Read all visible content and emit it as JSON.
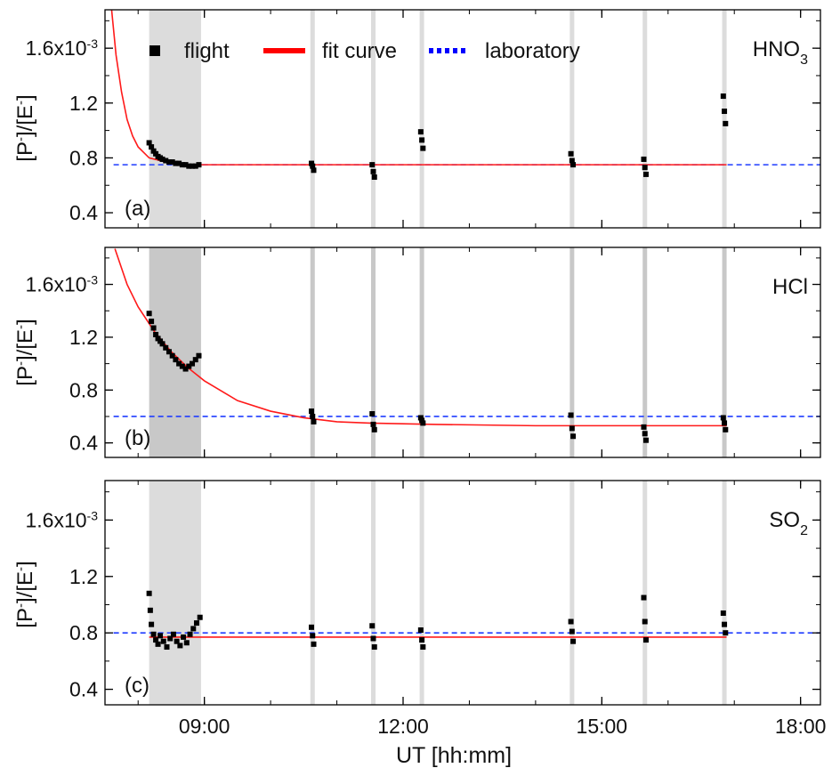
{
  "figure": {
    "x_axis_label": "UT [hh:mm]",
    "y_axis_label_main": "[P",
    "y_axis_label_sup1": "-",
    "y_axis_label_mid": "]/[E",
    "y_axis_label_sup2": "-",
    "y_axis_label_end": "]",
    "legend": [
      {
        "label": "flight",
        "color": "#000000",
        "style": "square"
      },
      {
        "label": "fit curve",
        "color": "#ff0000",
        "style": "solid"
      },
      {
        "label": "laboratory",
        "color": "#0000ff",
        "style": "dotted"
      }
    ]
  },
  "chart_data": [
    {
      "type": "line",
      "panel_label": "(a)",
      "species": "HNO3",
      "species_base": "HNO",
      "species_sub": "3",
      "xlabel": "UT [hh:mm]",
      "ylabel": "[P-]/[E-]",
      "xlim_hours": [
        7.5,
        18.3
      ],
      "ylim": [
        0.00029,
        0.00188
      ],
      "x_ticks": [
        "09:00",
        "12:00",
        "15:00",
        "18:00"
      ],
      "y_ticks": [
        {
          "value": 0.0004,
          "label": "0.4"
        },
        {
          "value": 0.0008,
          "label": "0.8"
        },
        {
          "value": 0.0012,
          "label": "1.2"
        },
        {
          "value": 0.0016,
          "label": "1.6x10",
          "sup": "-3"
        }
      ],
      "shade_color": "#dcdcdc",
      "flight_periods": [
        {
          "start": "08:10",
          "end": "08:57"
        },
        {
          "start": "10:36",
          "end": "10:40"
        },
        {
          "start": "11:31",
          "end": "11:35"
        },
        {
          "start": "12:15",
          "end": "12:19"
        },
        {
          "start": "14:31",
          "end": "14:35"
        },
        {
          "start": "15:37",
          "end": "15:41"
        },
        {
          "start": "16:49",
          "end": "16:53"
        }
      ],
      "flight_data": [
        {
          "x": "08:10",
          "y": 0.00091
        },
        {
          "x": "08:12",
          "y": 0.00088
        },
        {
          "x": "08:14",
          "y": 0.00085
        },
        {
          "x": "08:16",
          "y": 0.00083
        },
        {
          "x": "08:18",
          "y": 0.00081
        },
        {
          "x": "08:20",
          "y": 0.0008
        },
        {
          "x": "08:22",
          "y": 0.00079
        },
        {
          "x": "08:25",
          "y": 0.00078
        },
        {
          "x": "08:28",
          "y": 0.00077
        },
        {
          "x": "08:31",
          "y": 0.00077
        },
        {
          "x": "08:34",
          "y": 0.00076
        },
        {
          "x": "08:37",
          "y": 0.00076
        },
        {
          "x": "08:40",
          "y": 0.00075
        },
        {
          "x": "08:43",
          "y": 0.00075
        },
        {
          "x": "08:46",
          "y": 0.00074
        },
        {
          "x": "08:49",
          "y": 0.00074
        },
        {
          "x": "08:52",
          "y": 0.00074
        },
        {
          "x": "08:55",
          "y": 0.00075
        },
        {
          "x": "10:37",
          "y": 0.00076
        },
        {
          "x": "10:38",
          "y": 0.00074
        },
        {
          "x": "10:39",
          "y": 0.00071
        },
        {
          "x": "11:32",
          "y": 0.00075
        },
        {
          "x": "11:33",
          "y": 0.0007
        },
        {
          "x": "11:34",
          "y": 0.00066
        },
        {
          "x": "12:16",
          "y": 0.00099
        },
        {
          "x": "12:17",
          "y": 0.00093
        },
        {
          "x": "12:18",
          "y": 0.00087
        },
        {
          "x": "14:32",
          "y": 0.00083
        },
        {
          "x": "14:33",
          "y": 0.00078
        },
        {
          "x": "14:34",
          "y": 0.00075
        },
        {
          "x": "15:38",
          "y": 0.00079
        },
        {
          "x": "15:39",
          "y": 0.00073
        },
        {
          "x": "15:40",
          "y": 0.00068
        },
        {
          "x": "16:50",
          "y": 0.00125
        },
        {
          "x": "16:51",
          "y": 0.00114
        },
        {
          "x": "16:52",
          "y": 0.00105
        }
      ],
      "fit_curve": [
        {
          "x": "07:36",
          "y": 0.00188
        },
        {
          "x": "07:40",
          "y": 0.00155
        },
        {
          "x": "07:45",
          "y": 0.00128
        },
        {
          "x": "07:50",
          "y": 0.00108
        },
        {
          "x": "07:55",
          "y": 0.00096
        },
        {
          "x": "08:00",
          "y": 0.00088
        },
        {
          "x": "08:10",
          "y": 0.0008
        },
        {
          "x": "08:20",
          "y": 0.00078
        },
        {
          "x": "08:30",
          "y": 0.00076
        },
        {
          "x": "08:45",
          "y": 0.00075
        },
        {
          "x": "09:00",
          "y": 0.00075
        },
        {
          "x": "16:53",
          "y": 0.00075
        }
      ],
      "laboratory_value": 0.00075,
      "laboratory_x_range": [
        "08:10",
        "18:20"
      ]
    },
    {
      "type": "line",
      "panel_label": "(b)",
      "species": "HCl",
      "species_base": "HCl",
      "species_sub": "",
      "xlabel": "UT [hh:mm]",
      "ylabel": "[P-]/[E-]",
      "xlim_hours": [
        7.5,
        18.3
      ],
      "ylim": [
        0.00029,
        0.00188
      ],
      "x_ticks": [
        "09:00",
        "12:00",
        "15:00",
        "18:00"
      ],
      "y_ticks": [
        {
          "value": 0.0004,
          "label": "0.4"
        },
        {
          "value": 0.0008,
          "label": "0.8"
        },
        {
          "value": 0.0012,
          "label": "1.2"
        },
        {
          "value": 0.0016,
          "label": "1.6x10",
          "sup": "-3"
        }
      ],
      "shade_color": "#c8c8c8",
      "flight_periods": [
        {
          "start": "08:10",
          "end": "08:57"
        },
        {
          "start": "10:36",
          "end": "10:40"
        },
        {
          "start": "11:31",
          "end": "11:35"
        },
        {
          "start": "12:15",
          "end": "12:19"
        },
        {
          "start": "14:31",
          "end": "14:35"
        },
        {
          "start": "15:37",
          "end": "15:41"
        },
        {
          "start": "16:49",
          "end": "16:53"
        }
      ],
      "flight_data": [
        {
          "x": "08:10",
          "y": 0.00138
        },
        {
          "x": "08:12",
          "y": 0.00132
        },
        {
          "x": "08:14",
          "y": 0.00127
        },
        {
          "x": "08:16",
          "y": 0.00122
        },
        {
          "x": "08:18",
          "y": 0.00119
        },
        {
          "x": "08:20",
          "y": 0.00117
        },
        {
          "x": "08:22",
          "y": 0.00115
        },
        {
          "x": "08:25",
          "y": 0.00112
        },
        {
          "x": "08:28",
          "y": 0.00109
        },
        {
          "x": "08:31",
          "y": 0.00106
        },
        {
          "x": "08:34",
          "y": 0.00103
        },
        {
          "x": "08:37",
          "y": 0.001
        },
        {
          "x": "08:40",
          "y": 0.00098
        },
        {
          "x": "08:43",
          "y": 0.00096
        },
        {
          "x": "08:46",
          "y": 0.00098
        },
        {
          "x": "08:49",
          "y": 0.001
        },
        {
          "x": "08:52",
          "y": 0.00103
        },
        {
          "x": "08:55",
          "y": 0.00106
        },
        {
          "x": "10:37",
          "y": 0.00064
        },
        {
          "x": "10:38",
          "y": 0.0006
        },
        {
          "x": "10:39",
          "y": 0.00056
        },
        {
          "x": "11:32",
          "y": 0.00062
        },
        {
          "x": "11:33",
          "y": 0.00054
        },
        {
          "x": "11:34",
          "y": 0.0005
        },
        {
          "x": "12:16",
          "y": 0.00059
        },
        {
          "x": "12:17",
          "y": 0.00057
        },
        {
          "x": "12:18",
          "y": 0.00055
        },
        {
          "x": "14:32",
          "y": 0.00061
        },
        {
          "x": "14:33",
          "y": 0.00051
        },
        {
          "x": "14:34",
          "y": 0.00045
        },
        {
          "x": "15:38",
          "y": 0.00052
        },
        {
          "x": "15:39",
          "y": 0.00047
        },
        {
          "x": "15:40",
          "y": 0.00042
        },
        {
          "x": "16:50",
          "y": 0.00059
        },
        {
          "x": "16:51",
          "y": 0.00055
        },
        {
          "x": "16:52",
          "y": 0.0005
        }
      ],
      "fit_curve": [
        {
          "x": "07:39",
          "y": 0.00187
        },
        {
          "x": "07:50",
          "y": 0.0016
        },
        {
          "x": "08:00",
          "y": 0.00143
        },
        {
          "x": "08:15",
          "y": 0.00124
        },
        {
          "x": "08:30",
          "y": 0.00109
        },
        {
          "x": "08:45",
          "y": 0.00097
        },
        {
          "x": "09:00",
          "y": 0.00087
        },
        {
          "x": "09:30",
          "y": 0.00072
        },
        {
          "x": "10:00",
          "y": 0.00064
        },
        {
          "x": "10:30",
          "y": 0.00059
        },
        {
          "x": "11:00",
          "y": 0.00056
        },
        {
          "x": "11:30",
          "y": 0.00055
        },
        {
          "x": "12:30",
          "y": 0.00054
        },
        {
          "x": "14:00",
          "y": 0.00053
        },
        {
          "x": "16:53",
          "y": 0.00053
        }
      ],
      "laboratory_value": 0.0006,
      "laboratory_x_range": [
        "08:10",
        "18:20"
      ]
    },
    {
      "type": "line",
      "panel_label": "(c)",
      "species": "SO2",
      "species_base": "SO",
      "species_sub": "2",
      "xlabel": "UT [hh:mm]",
      "ylabel": "[P-]/[E-]",
      "xlim_hours": [
        7.5,
        18.3
      ],
      "ylim": [
        0.00029,
        0.00188
      ],
      "x_ticks": [
        "09:00",
        "12:00",
        "15:00",
        "18:00"
      ],
      "y_ticks": [
        {
          "value": 0.0004,
          "label": "0.4"
        },
        {
          "value": 0.0008,
          "label": "0.8"
        },
        {
          "value": 0.0012,
          "label": "1.2"
        },
        {
          "value": 0.0016,
          "label": "1.6x10",
          "sup": "-3"
        }
      ],
      "shade_color": "#dcdcdc",
      "flight_periods": [
        {
          "start": "08:10",
          "end": "08:57"
        },
        {
          "start": "10:36",
          "end": "10:40"
        },
        {
          "start": "11:31",
          "end": "11:35"
        },
        {
          "start": "12:15",
          "end": "12:19"
        },
        {
          "start": "14:31",
          "end": "14:35"
        },
        {
          "start": "15:37",
          "end": "15:41"
        },
        {
          "start": "16:49",
          "end": "16:53"
        }
      ],
      "flight_data": [
        {
          "x": "08:10",
          "y": 0.00108
        },
        {
          "x": "08:11",
          "y": 0.00096
        },
        {
          "x": "08:12",
          "y": 0.00086
        },
        {
          "x": "08:14",
          "y": 0.00079
        },
        {
          "x": "08:16",
          "y": 0.00075
        },
        {
          "x": "08:18",
          "y": 0.00072
        },
        {
          "x": "08:20",
          "y": 0.00078
        },
        {
          "x": "08:23",
          "y": 0.00074
        },
        {
          "x": "08:26",
          "y": 0.0007
        },
        {
          "x": "08:29",
          "y": 0.00076
        },
        {
          "x": "08:32",
          "y": 0.00079
        },
        {
          "x": "08:35",
          "y": 0.00074
        },
        {
          "x": "08:38",
          "y": 0.00071
        },
        {
          "x": "08:41",
          "y": 0.00077
        },
        {
          "x": "08:44",
          "y": 0.00073
        },
        {
          "x": "08:47",
          "y": 0.00079
        },
        {
          "x": "08:50",
          "y": 0.00083
        },
        {
          "x": "08:53",
          "y": 0.00087
        },
        {
          "x": "08:56",
          "y": 0.00091
        },
        {
          "x": "10:37",
          "y": 0.00084
        },
        {
          "x": "10:38",
          "y": 0.00078
        },
        {
          "x": "10:39",
          "y": 0.00072
        },
        {
          "x": "11:32",
          "y": 0.00085
        },
        {
          "x": "11:33",
          "y": 0.00076
        },
        {
          "x": "11:34",
          "y": 0.0007
        },
        {
          "x": "12:16",
          "y": 0.00082
        },
        {
          "x": "12:17",
          "y": 0.00075
        },
        {
          "x": "12:18",
          "y": 0.0007
        },
        {
          "x": "14:32",
          "y": 0.00088
        },
        {
          "x": "14:33",
          "y": 0.00081
        },
        {
          "x": "14:34",
          "y": 0.00074
        },
        {
          "x": "15:38",
          "y": 0.00105
        },
        {
          "x": "15:39",
          "y": 0.00088
        },
        {
          "x": "15:40",
          "y": 0.00075
        },
        {
          "x": "16:50",
          "y": 0.00094
        },
        {
          "x": "16:51",
          "y": 0.00086
        },
        {
          "x": "16:52",
          "y": 0.0008
        }
      ],
      "fit_curve": [
        {
          "x": "08:10",
          "y": 0.00077
        },
        {
          "x": "16:53",
          "y": 0.00077
        }
      ],
      "laboratory_value": 0.0008,
      "laboratory_x_range": [
        "08:10",
        "18:20"
      ]
    }
  ]
}
